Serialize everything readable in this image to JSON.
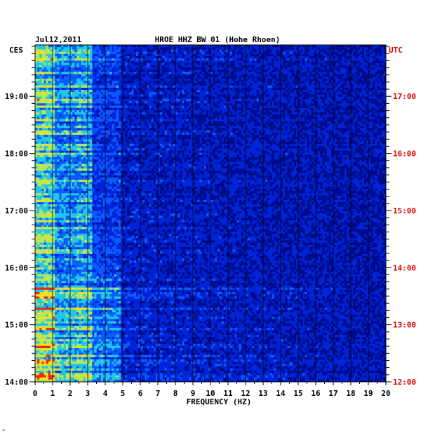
{
  "chart_data": {
    "type": "heatmap",
    "date": "Jul12,2011",
    "title": "HROE HHZ BW 01 (Hohe Rhoen)",
    "left_timezone": "CES",
    "right_timezone": "UTC",
    "xlabel": "FREQUENCY (HZ)",
    "xlim": [
      0,
      20
    ],
    "x_ticks": [
      "0",
      "1",
      "2",
      "3",
      "4",
      "5",
      "6",
      "7",
      "8",
      "9",
      "10",
      "11",
      "12",
      "13",
      "14",
      "15",
      "16",
      "17",
      "18",
      "19",
      "20"
    ],
    "left_hour_range": [
      14,
      19.9
    ],
    "left_ticks": [
      {
        "value": 19,
        "label": "19:00"
      },
      {
        "value": 18,
        "label": "18:00"
      },
      {
        "value": 17,
        "label": "17:00"
      },
      {
        "value": 16,
        "label": "16:00"
      },
      {
        "value": 15,
        "label": "15:00"
      },
      {
        "value": 14,
        "label": "14:00"
      }
    ],
    "right_ticks": [
      {
        "value": 17,
        "label": "17:00"
      },
      {
        "value": 16,
        "label": "16:00"
      },
      {
        "value": 15,
        "label": "15:00"
      },
      {
        "value": 14,
        "label": "14:00"
      },
      {
        "value": 13,
        "label": "13:00"
      },
      {
        "value": 12,
        "label": "12:00"
      }
    ],
    "colorscale": [
      "#000c8c",
      "#0024d8",
      "#0a5cff",
      "#22c8e8",
      "#b4e85a",
      "#f4e020",
      "#e82818"
    ],
    "label_color_left": "#000000",
    "label_color_right": "#dd0000",
    "grid": true,
    "footer_mark": "*"
  }
}
